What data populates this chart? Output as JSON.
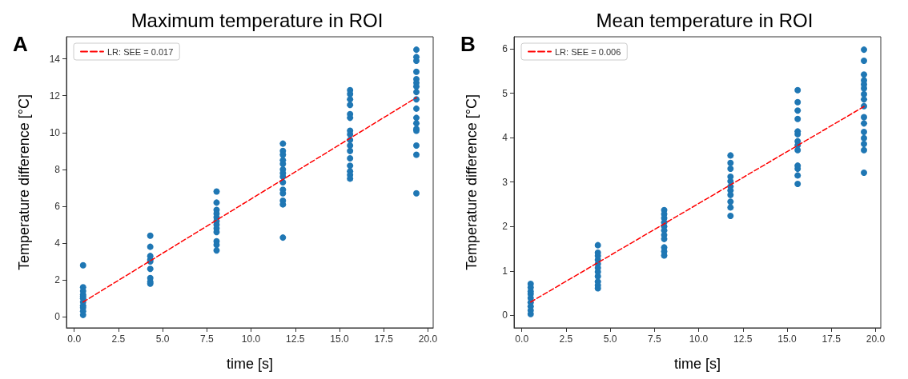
{
  "chart_data": [
    {
      "type": "scatter",
      "title": "Maximum temperature in ROI",
      "annotations": [
        "A"
      ],
      "xlabel": "time [s]",
      "ylabel": "Temperature difference [°C]",
      "xlim": [
        -0.44,
        20.3
      ],
      "ylim": [
        -0.6,
        15.2
      ],
      "xticks": [
        {
          "value": 0,
          "label": "0.0"
        },
        {
          "value": 2.5,
          "label": "2.5"
        },
        {
          "value": 5,
          "label": "5.0"
        },
        {
          "value": 7.5,
          "label": "7.5"
        },
        {
          "value": 10,
          "label": "10.0"
        },
        {
          "value": 12.5,
          "label": "12.5"
        },
        {
          "value": 15,
          "label": "15.0"
        },
        {
          "value": 17.5,
          "label": "17.5"
        },
        {
          "value": 20,
          "label": "20.0"
        }
      ],
      "yticks": [
        0,
        2,
        4,
        6,
        8,
        10,
        12,
        14
      ],
      "grid": false,
      "legend": "top left",
      "series": [
        {
          "color": "#1f77b4",
          "marker": "circle",
          "x": [
            0.5,
            0.5,
            0.5,
            0.5,
            0.5,
            0.5,
            0.5,
            0.5,
            0.5,
            0.5,
            0.5,
            4.3,
            4.3,
            4.3,
            4.3,
            4.3,
            4.3,
            4.3,
            4.3,
            4.3,
            8.05,
            8.05,
            8.05,
            8.05,
            8.05,
            8.05,
            8.05,
            8.05,
            8.05,
            8.05,
            8.05,
            8.05,
            11.8,
            11.8,
            11.8,
            11.8,
            11.8,
            11.8,
            11.8,
            11.8,
            11.8,
            11.8,
            11.8,
            11.8,
            11.8,
            11.8,
            15.6,
            15.6,
            15.6,
            15.6,
            15.6,
            15.6,
            15.6,
            15.6,
            15.6,
            15.6,
            15.6,
            15.6,
            15.6,
            15.6,
            15.6,
            15.6,
            19.35,
            19.35,
            19.35,
            19.35,
            19.35,
            19.35,
            19.35,
            19.35,
            19.35,
            19.35,
            19.35,
            19.35,
            19.35,
            19.35,
            19.35,
            19.35,
            19.35
          ],
          "values": [
            2.8,
            1.6,
            1.4,
            1.2,
            1.1,
            1.0,
            0.8,
            0.6,
            0.5,
            0.3,
            0.1,
            4.4,
            3.8,
            3.3,
            3.1,
            3.0,
            2.6,
            2.1,
            1.9,
            1.8,
            6.8,
            6.2,
            5.8,
            5.6,
            5.4,
            5.2,
            5.0,
            4.8,
            4.6,
            4.1,
            3.9,
            3.6,
            9.4,
            9.0,
            8.8,
            8.5,
            8.3,
            8.0,
            7.8,
            7.6,
            7.3,
            6.9,
            6.7,
            6.3,
            6.1,
            4.3,
            12.3,
            12.1,
            11.8,
            11.5,
            11.0,
            10.8,
            10.1,
            9.9,
            9.6,
            9.3,
            9.0,
            8.6,
            8.2,
            7.9,
            7.7,
            7.5,
            14.5,
            14.1,
            13.9,
            13.3,
            12.9,
            12.7,
            12.5,
            12.2,
            11.8,
            11.3,
            10.8,
            10.5,
            10.2,
            10.1,
            9.3,
            8.8,
            6.7
          ]
        },
        {
          "type": "line",
          "name": "LR: SEE = 0.017",
          "color": "#ff0000",
          "marker": "none",
          "line_style": "dashed",
          "x": [
            0.5,
            19.35
          ],
          "values": [
            0.8,
            11.9
          ]
        }
      ]
    },
    {
      "type": "scatter",
      "title": "Mean temperature in ROI",
      "annotations": [
        "B"
      ],
      "xlabel": "time [s]",
      "ylabel": "Temperature difference [°C]",
      "xlim": [
        -0.44,
        20.3
      ],
      "ylim": [
        -0.28,
        6.27
      ],
      "xticks": [
        {
          "value": 0,
          "label": "0.0"
        },
        {
          "value": 2.5,
          "label": "2.5"
        },
        {
          "value": 5,
          "label": "5.0"
        },
        {
          "value": 7.5,
          "label": "7.5"
        },
        {
          "value": 10,
          "label": "10.0"
        },
        {
          "value": 12.5,
          "label": "12.5"
        },
        {
          "value": 15,
          "label": "15.0"
        },
        {
          "value": 17.5,
          "label": "17.5"
        },
        {
          "value": 20,
          "label": "20.0"
        }
      ],
      "yticks": [
        0,
        1,
        2,
        3,
        4,
        5,
        6
      ],
      "grid": false,
      "legend": "top left",
      "series": [
        {
          "color": "#1f77b4",
          "marker": "circle",
          "x": [
            0.5,
            0.5,
            0.5,
            0.5,
            0.5,
            0.5,
            0.5,
            0.5,
            0.5,
            4.3,
            4.3,
            4.3,
            4.3,
            4.3,
            4.3,
            4.3,
            4.3,
            4.3,
            4.3,
            4.3,
            8.05,
            8.05,
            8.05,
            8.05,
            8.05,
            8.05,
            8.05,
            8.05,
            8.05,
            8.05,
            8.05,
            11.8,
            11.8,
            11.8,
            11.8,
            11.8,
            11.8,
            11.8,
            11.8,
            11.8,
            11.8,
            11.8,
            15.6,
            15.6,
            15.6,
            15.6,
            15.6,
            15.6,
            15.6,
            15.6,
            15.6,
            15.6,
            15.6,
            15.6,
            15.6,
            19.35,
            19.35,
            19.35,
            19.35,
            19.35,
            19.35,
            19.35,
            19.35,
            19.35,
            19.35,
            19.35,
            19.35,
            19.35,
            19.35,
            19.35,
            19.35
          ],
          "values": [
            0.71,
            0.63,
            0.54,
            0.48,
            0.39,
            0.29,
            0.2,
            0.11,
            0.03,
            1.58,
            1.41,
            1.34,
            1.25,
            1.16,
            1.07,
            0.98,
            0.88,
            0.76,
            0.68,
            0.61,
            2.37,
            2.28,
            2.19,
            2.09,
            2.0,
            1.91,
            1.81,
            1.72,
            1.53,
            1.44,
            1.35,
            3.6,
            3.43,
            3.3,
            3.12,
            3.02,
            2.9,
            2.81,
            2.71,
            2.56,
            2.43,
            2.24,
            5.07,
            4.8,
            4.61,
            4.42,
            4.14,
            4.08,
            3.92,
            3.83,
            3.72,
            3.37,
            3.3,
            3.15,
            2.96,
            5.98,
            5.73,
            5.42,
            5.29,
            5.2,
            5.11,
            4.98,
            4.86,
            4.71,
            4.46,
            4.32,
            4.13,
            3.99,
            3.86,
            3.72,
            3.21
          ]
        },
        {
          "type": "line",
          "name": "LR: SEE = 0.006",
          "color": "#ff0000",
          "marker": "none",
          "line_style": "dashed",
          "x": [
            0.5,
            19.35
          ],
          "values": [
            0.3,
            4.7
          ]
        }
      ]
    }
  ]
}
